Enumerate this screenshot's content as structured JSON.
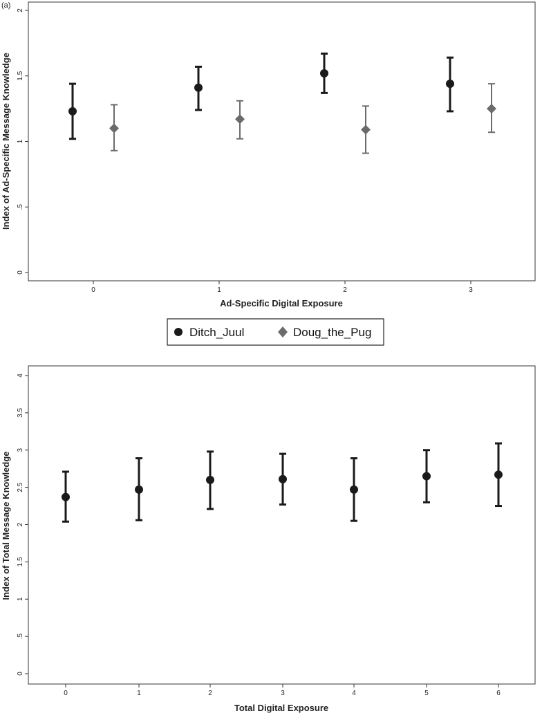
{
  "panel_label": "(a)",
  "legend": {
    "items": [
      {
        "label": "Ditch_Juul",
        "color": "#1a1a1a",
        "marker": "circle"
      },
      {
        "label": "Doug_the_Pug",
        "color": "#6b6b6b",
        "marker": "diamond"
      }
    ]
  },
  "chart_data": [
    {
      "type": "scatter",
      "subtype": "point-with-error-bars",
      "xlabel": "Ad-Specific Digital Exposure",
      "ylabel": "Index of Ad-Specific Message Knowledge",
      "categories": [
        "0",
        "1",
        "2",
        "3"
      ],
      "ylim": [
        0,
        2
      ],
      "yticks": [
        0,
        0.5,
        1,
        1.5,
        2
      ],
      "ytick_labels": [
        "0",
        ".5",
        "1",
        "1.5",
        "2"
      ],
      "grid": false,
      "legend_position": "bottom",
      "series": [
        {
          "name": "Ditch_Juul",
          "color": "#1a1a1a",
          "marker": "circle",
          "values": [
            1.23,
            1.41,
            1.52,
            1.44
          ],
          "lower": [
            1.02,
            1.24,
            1.37,
            1.23
          ],
          "upper": [
            1.44,
            1.57,
            1.67,
            1.64
          ]
        },
        {
          "name": "Doug_the_Pug",
          "color": "#6b6b6b",
          "marker": "diamond",
          "values": [
            1.1,
            1.17,
            1.09,
            1.25
          ],
          "lower": [
            0.93,
            1.02,
            0.91,
            1.07
          ],
          "upper": [
            1.28,
            1.31,
            1.27,
            1.44
          ]
        }
      ]
    },
    {
      "type": "scatter",
      "subtype": "point-with-error-bars",
      "xlabel": "Total Digital Exposure",
      "ylabel": "Index of Total Message Knowledge",
      "categories": [
        "0",
        "1",
        "2",
        "3",
        "4",
        "5",
        "6"
      ],
      "ylim": [
        0,
        4
      ],
      "yticks": [
        0,
        0.5,
        1,
        1.5,
        2,
        2.5,
        3,
        3.5,
        4
      ],
      "ytick_labels": [
        "0",
        ".5",
        "1",
        "1.5",
        "2",
        "2.5",
        "3",
        "3.5",
        "4"
      ],
      "grid": false,
      "series": [
        {
          "color": "#1a1a1a",
          "marker": "circle",
          "values": [
            2.37,
            2.47,
            2.6,
            2.61,
            2.47,
            2.65,
            2.67
          ],
          "lower": [
            2.04,
            2.06,
            2.21,
            2.27,
            2.05,
            2.3,
            2.25
          ],
          "upper": [
            2.71,
            2.89,
            2.98,
            2.95,
            2.89,
            3.0,
            3.09
          ]
        }
      ]
    }
  ]
}
